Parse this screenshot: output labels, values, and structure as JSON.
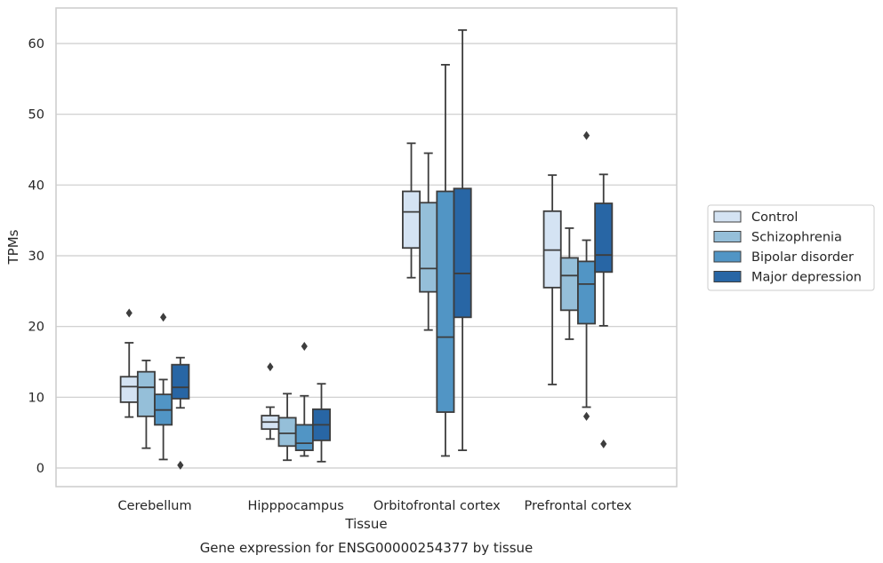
{
  "chart_data": {
    "type": "box",
    "title": "",
    "caption": "Gene expression for ENSG00000254377 by tissue",
    "xlabel": "Tissue",
    "ylabel": "TPMs",
    "ylim": [
      -2.6,
      65
    ],
    "yticks": [
      0,
      10,
      20,
      30,
      40,
      50,
      60
    ],
    "grid": "horizontal",
    "legend_position": "right",
    "categories": [
      "Cerebellum",
      "Hipppocampus",
      "Orbitofrontal cortex",
      "Prefrontal cortex"
    ],
    "series": [
      {
        "name": "Control",
        "color": "#d4e3f3",
        "boxes": [
          {
            "whislo": 7.2,
            "q1": 9.3,
            "med": 11.5,
            "q3": 12.9,
            "whishi": 17.7,
            "fliers": [
              21.9
            ]
          },
          {
            "whislo": 4.1,
            "q1": 5.5,
            "med": 6.5,
            "q3": 7.4,
            "whishi": 8.6,
            "fliers": [
              14.3
            ]
          },
          {
            "whislo": 26.9,
            "q1": 31.1,
            "med": 36.2,
            "q3": 39.1,
            "whishi": 45.9,
            "fliers": []
          },
          {
            "whislo": 11.8,
            "q1": 25.5,
            "med": 30.8,
            "q3": 36.3,
            "whishi": 41.4,
            "fliers": []
          }
        ]
      },
      {
        "name": "Schizophrenia",
        "color": "#95bfd9",
        "boxes": [
          {
            "whislo": 2.8,
            "q1": 7.3,
            "med": 11.4,
            "q3": 13.6,
            "whishi": 15.2,
            "fliers": []
          },
          {
            "whislo": 1.1,
            "q1": 3.1,
            "med": 4.9,
            "q3": 7.1,
            "whishi": 10.5,
            "fliers": []
          },
          {
            "whislo": 19.5,
            "q1": 24.9,
            "med": 28.2,
            "q3": 37.5,
            "whishi": 44.5,
            "fliers": []
          },
          {
            "whislo": 18.2,
            "q1": 22.3,
            "med": 27.2,
            "q3": 29.7,
            "whishi": 33.9,
            "fliers": []
          }
        ]
      },
      {
        "name": "Bipolar disorder",
        "color": "#5195c5",
        "boxes": [
          {
            "whislo": 1.2,
            "q1": 6.1,
            "med": 8.2,
            "q3": 10.4,
            "whishi": 12.5,
            "fliers": [
              21.3
            ]
          },
          {
            "whislo": 1.7,
            "q1": 2.5,
            "med": 3.5,
            "q3": 6.1,
            "whishi": 10.2,
            "fliers": [
              17.2
            ]
          },
          {
            "whislo": 1.7,
            "q1": 7.9,
            "med": 18.5,
            "q3": 39.1,
            "whishi": 57.0,
            "fliers": []
          },
          {
            "whislo": 8.6,
            "q1": 20.4,
            "med": 26.0,
            "q3": 29.2,
            "whishi": 32.2,
            "fliers": [
              47.0,
              7.3
            ]
          }
        ]
      },
      {
        "name": "Major depression",
        "color": "#2866a5",
        "boxes": [
          {
            "whislo": 8.5,
            "q1": 9.8,
            "med": 11.4,
            "q3": 14.6,
            "whishi": 15.6,
            "fliers": [
              0.4
            ]
          },
          {
            "whislo": 0.9,
            "q1": 3.9,
            "med": 6.1,
            "q3": 8.3,
            "whishi": 11.9,
            "fliers": []
          },
          {
            "whislo": 2.5,
            "q1": 21.3,
            "med": 27.5,
            "q3": 39.5,
            "whishi": 61.9,
            "fliers": []
          },
          {
            "whislo": 20.1,
            "q1": 27.7,
            "med": 30.1,
            "q3": 37.4,
            "whishi": 41.5,
            "fliers": [
              3.4
            ]
          }
        ]
      }
    ]
  }
}
